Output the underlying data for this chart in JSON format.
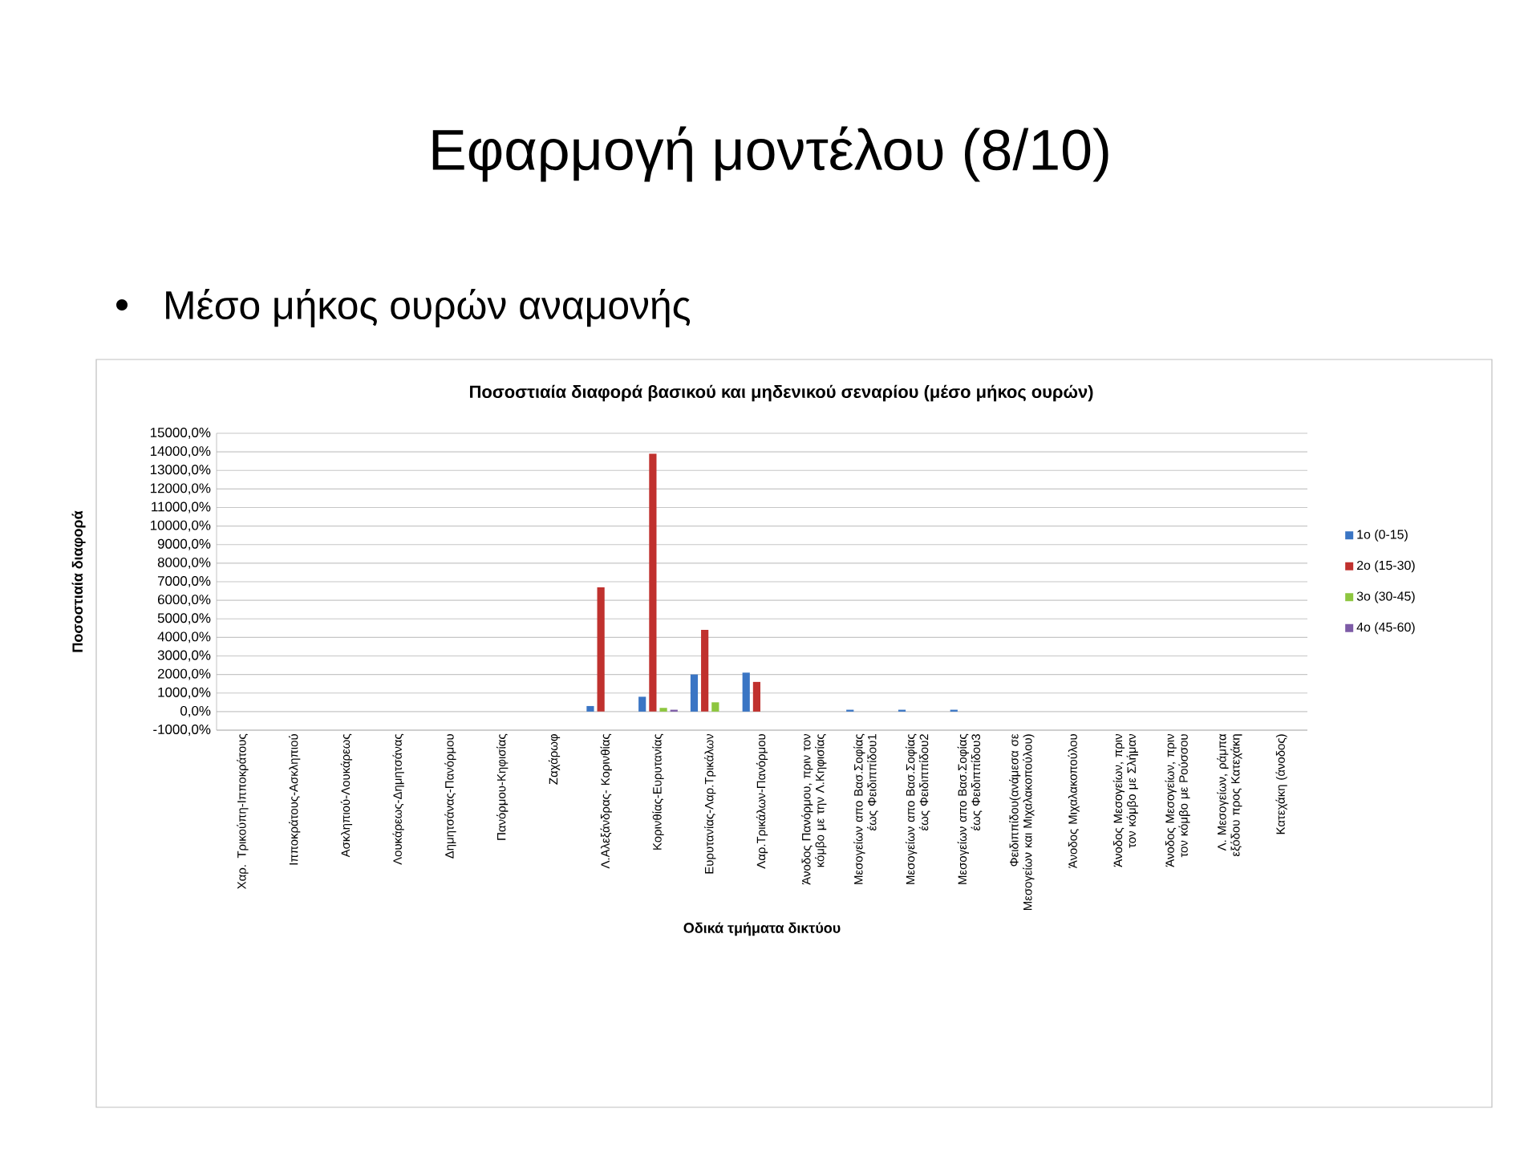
{
  "chart_data": {
    "type": "bar",
    "title": "Ποσοστιαία διαφορά βασικού και μηδενικού σεναρίου (μέσο μήκος ουρών)",
    "xlabel": "Οδικά τμήματα δικτύου",
    "ylabel": "Ποσοστιαία διαφορά",
    "annotations": [
      "Εφαρμογή μοντέλου (8/10)",
      "Μέσο μήκος ουρών αναμονής"
    ],
    "categories": [
      "Χαρ. Τρικούπη-Ιπποκράτους",
      "Ιπποκράτους-Ασκληπιού",
      "Ασκληπιού-Λουκάρεως",
      "Λουκάρεως-Δημητσάνας",
      "Δημητσάνας-Πανόρμου",
      "Πανόρμου-Κηφισίας",
      "Ζαχάρωφ",
      "Λ.Αλεξάνδρας- Κορινθίας",
      "Κορινθίας-Ευρυτανίας",
      "Ευρυτανίας-Λαρ.Τρικάλων",
      "Λαρ.Τρικάλων-Πανόρμου",
      "Άνοδος Πανόρμου, πριν τον κόμβο με την Λ.Κηφισίας",
      "Μεσογείων απο Βασ.Σοφίας έως Φειδιππίδου1",
      "Μεσογείων απο Βασ.Σοφίας έως Φειδιππίδου2",
      "Μεσογείων απο Βασ.Σοφίας έως Φειδιππίδου3",
      "Φειδιππίδου(ανάμεσα σε Μεσογείων και Μιχαλακοπούλου)",
      "Άνοδος Μιχαλακοπούλου",
      "Άνοδος Μεσογείων, πριν τον κόμβο με Σλήμαν",
      "Άνοδος Μεσογείων, πριν τον κόμβο με Ρούσσου",
      "Λ. Μεσογείων, ράμπα εξόδου προς Κατεχάκη",
      "Κατεχάκη (άνοδος)"
    ],
    "series": [
      {
        "name": "1ο (0-15)",
        "color": "#3a75c4",
        "values": [
          0,
          0,
          0,
          0,
          0,
          0,
          0,
          300,
          800,
          2000,
          2100,
          0,
          100,
          100,
          100,
          0,
          0,
          0,
          0,
          0,
          0
        ]
      },
      {
        "name": "2ο (15-30)",
        "color": "#c0312e",
        "values": [
          0,
          0,
          0,
          0,
          0,
          0,
          0,
          6700,
          13900,
          4400,
          1600,
          0,
          0,
          0,
          0,
          0,
          0,
          0,
          0,
          0,
          0
        ]
      },
      {
        "name": "3ο (30-45)",
        "color": "#8dc63f",
        "values": [
          0,
          0,
          0,
          0,
          0,
          0,
          0,
          0,
          200,
          500,
          0,
          0,
          0,
          0,
          0,
          0,
          0,
          0,
          0,
          0,
          0
        ]
      },
      {
        "name": "4ο (45-60)",
        "color": "#7d5ba6",
        "values": [
          0,
          0,
          0,
          0,
          0,
          0,
          0,
          0,
          100,
          0,
          0,
          0,
          0,
          0,
          0,
          0,
          0,
          0,
          0,
          0,
          0
        ]
      }
    ],
    "ylim": [
      -1000,
      15000
    ],
    "yticks": [
      {
        "value": -1000,
        "label": "-1000,0%"
      },
      {
        "value": 0,
        "label": "0,0%"
      },
      {
        "value": 1000,
        "label": "1000,0%"
      },
      {
        "value": 2000,
        "label": "2000,0%"
      },
      {
        "value": 3000,
        "label": "3000,0%"
      },
      {
        "value": 4000,
        "label": "4000,0%"
      },
      {
        "value": 5000,
        "label": "5000,0%"
      },
      {
        "value": 6000,
        "label": "6000,0%"
      },
      {
        "value": 7000,
        "label": "7000,0%"
      },
      {
        "value": 8000,
        "label": "8000,0%"
      },
      {
        "value": 9000,
        "label": "9000,0%"
      },
      {
        "value": 10000,
        "label": "10000,0%"
      },
      {
        "value": 11000,
        "label": "11000,0%"
      },
      {
        "value": 12000,
        "label": "12000,0%"
      },
      {
        "value": 13000,
        "label": "13000,0%"
      },
      {
        "value": 14000,
        "label": "14000,0%"
      },
      {
        "value": 15000,
        "label": "15000,0%"
      }
    ],
    "grid": "y",
    "legend": "right"
  }
}
